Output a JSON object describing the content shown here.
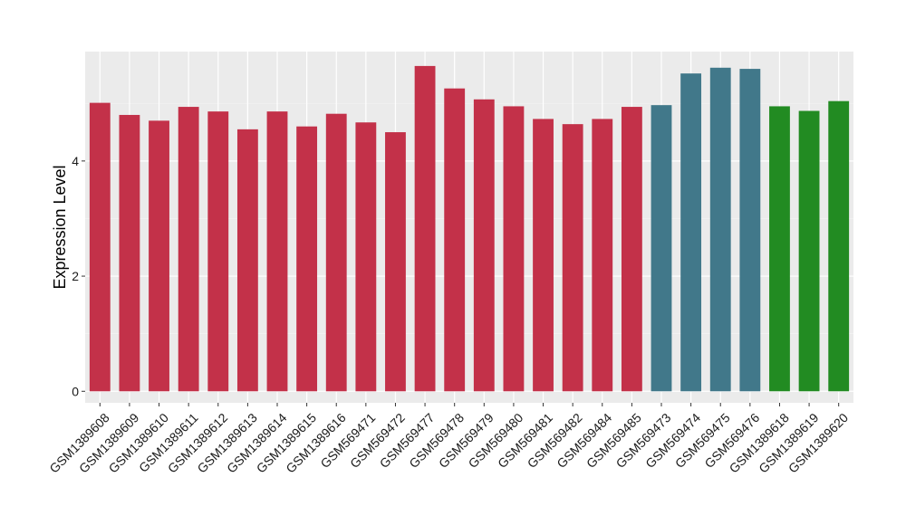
{
  "chart_data": {
    "type": "bar",
    "title": "",
    "xlabel": "",
    "ylabel": "Expression Level",
    "ylim": [
      -0.2,
      5.9
    ],
    "yticks": [
      0,
      2,
      4
    ],
    "grid": true,
    "legend": "none",
    "categories": [
      "GSM1389608",
      "GSM1389609",
      "GSM1389610",
      "GSM1389611",
      "GSM1389612",
      "GSM1389613",
      "GSM1389614",
      "GSM1389615",
      "GSM1389616",
      "GSM569471",
      "GSM569472",
      "GSM569477",
      "GSM569478",
      "GSM569479",
      "GSM569480",
      "GSM569481",
      "GSM569482",
      "GSM569484",
      "GSM569485",
      "GSM569473",
      "GSM569474",
      "GSM569475",
      "GSM569476",
      "GSM1389618",
      "GSM1389619",
      "GSM1389620"
    ],
    "values": [
      5.01,
      4.8,
      4.7,
      4.94,
      4.86,
      4.55,
      4.86,
      4.6,
      4.82,
      4.67,
      4.5,
      5.65,
      5.26,
      5.07,
      4.95,
      4.73,
      4.64,
      4.73,
      4.94,
      4.97,
      5.52,
      5.62,
      5.6,
      4.95,
      4.87,
      5.04
    ],
    "colors": [
      "#c33149",
      "#c33149",
      "#c33149",
      "#c33149",
      "#c33149",
      "#c33149",
      "#c33149",
      "#c33149",
      "#c33149",
      "#c33149",
      "#c33149",
      "#c33149",
      "#c33149",
      "#c33149",
      "#c33149",
      "#c33149",
      "#c33149",
      "#c33149",
      "#c33149",
      "#41788a",
      "#41788a",
      "#41788a",
      "#41788a",
      "#228b22",
      "#228b22",
      "#228b22"
    ]
  }
}
